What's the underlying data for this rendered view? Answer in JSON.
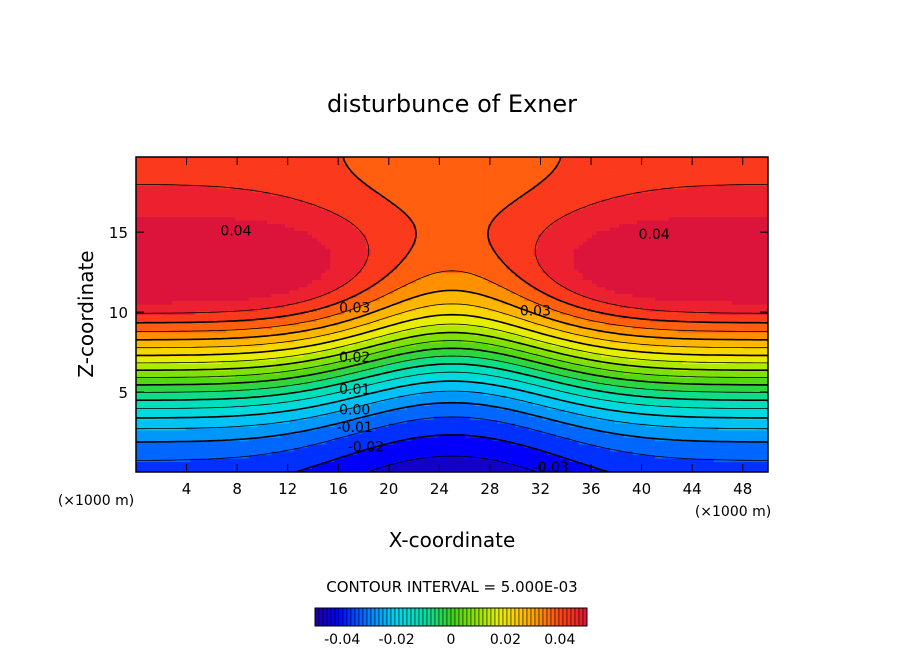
{
  "chart_data": {
    "type": "heatmap",
    "title": "disturbunce of Exner",
    "xlabel": "X-coordinate",
    "ylabel": "Z-coordinate",
    "x_unit": "(×1000 m)",
    "z_unit": "(×1000 m)",
    "xlim": [
      0,
      50
    ],
    "ylim": [
      0,
      19.7
    ],
    "x_ticks": [
      4,
      8,
      12,
      16,
      20,
      24,
      28,
      32,
      36,
      40,
      44,
      48
    ],
    "y_ticks": [
      5,
      10,
      15
    ],
    "contour_interval_text": "CONTOUR INTERVAL = 5.000E-03",
    "contour_interval": 0.005,
    "value_range": [
      -0.045,
      0.045
    ],
    "contour_labels": [
      {
        "text": "0.04",
        "x": 7.9,
        "z": 15.1
      },
      {
        "text": "0.04",
        "x": 41.0,
        "z": 14.9
      },
      {
        "text": "0.03",
        "x": 17.3,
        "z": 10.3
      },
      {
        "text": "0.03",
        "x": 31.6,
        "z": 10.1
      },
      {
        "text": "0.02",
        "x": 17.3,
        "z": 7.2
      },
      {
        "text": "0.01",
        "x": 17.3,
        "z": 5.2
      },
      {
        "text": "0.00",
        "x": 17.3,
        "z": 3.9
      },
      {
        "text": "-0.01",
        "x": 17.3,
        "z": 2.8
      },
      {
        "text": "-0.02",
        "x": 18.2,
        "z": 1.6
      },
      {
        "text": "-0.03",
        "x": 32.8,
        "z": 0.3
      }
    ],
    "colorbar": {
      "range": [
        -0.05,
        0.05
      ],
      "tick_labels": [
        "-0.04",
        "-0.02",
        "0",
        "0.02",
        "0.04"
      ],
      "tick_values": [
        -0.04,
        -0.02,
        0,
        0.02,
        0.04
      ]
    }
  }
}
